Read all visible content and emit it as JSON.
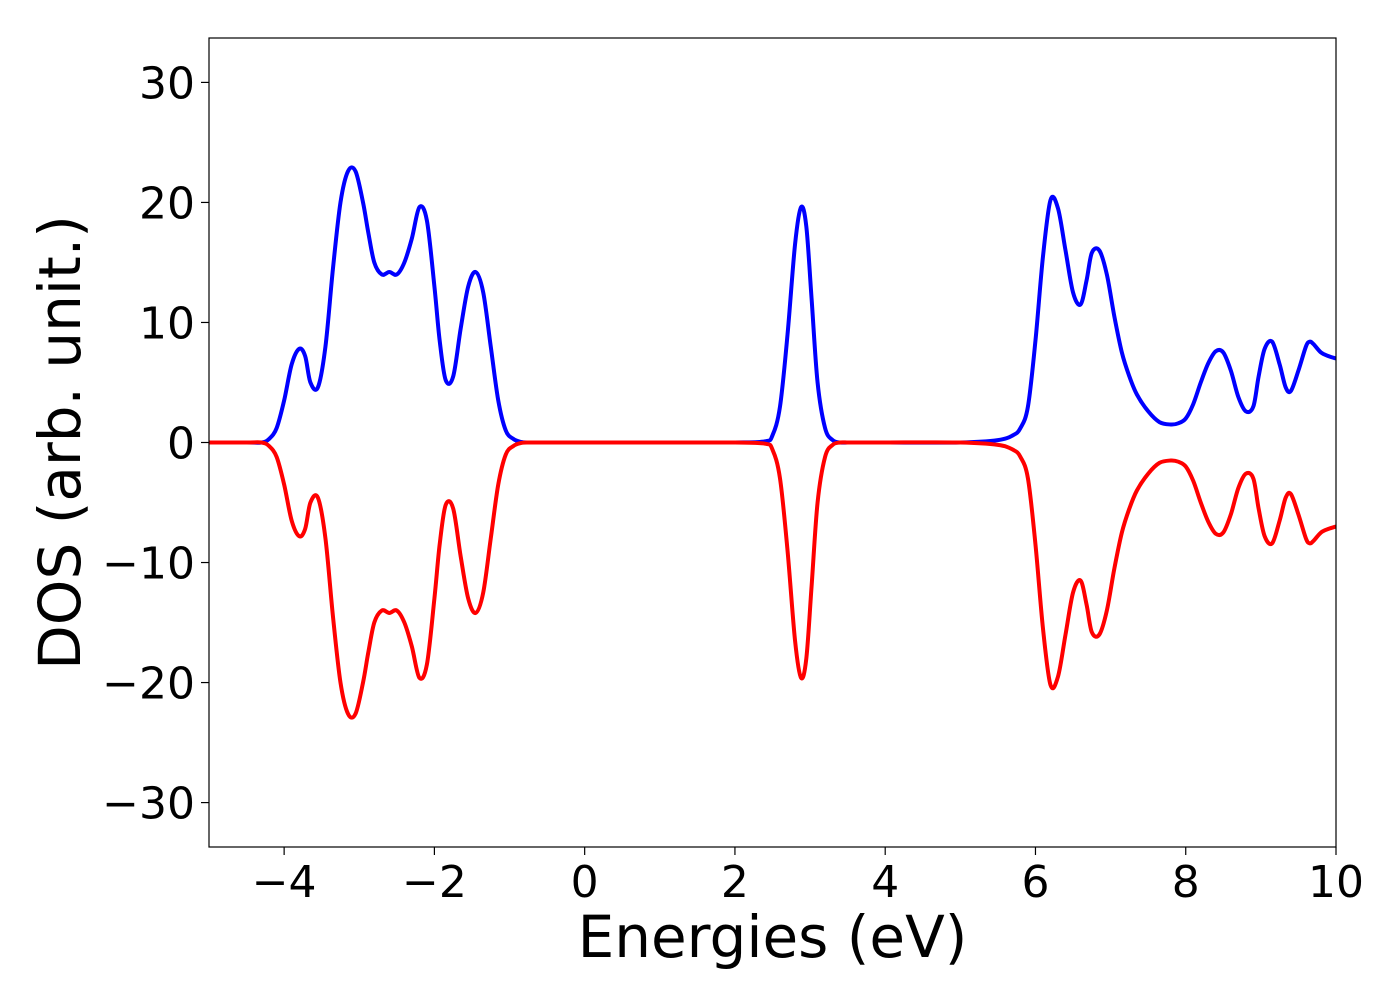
{
  "chart_data": {
    "type": "line",
    "title": "",
    "xlabel": "Energies (eV)",
    "ylabel": "DOS (arb. unit.)",
    "xlim": [
      -5,
      10
    ],
    "ylim": [
      -33.7,
      33.7
    ],
    "xticks": [
      -4,
      -2,
      0,
      2,
      4,
      6,
      8,
      10
    ],
    "xtick_labels": [
      "−4",
      "−2",
      "0",
      "2",
      "4",
      "6",
      "8",
      "10"
    ],
    "yticks": [
      30,
      20,
      10,
      0,
      -10,
      -20,
      -30
    ],
    "ytick_labels": [
      "30",
      "20",
      "10",
      "0",
      "−10",
      "−20",
      "−30"
    ],
    "grid": false,
    "legend": "none",
    "series": [
      {
        "color": "#0000ff",
        "x": [
          -5.0,
          -4.5,
          -4.3,
          -4.2,
          -4.1,
          -4.0,
          -3.9,
          -3.8,
          -3.72,
          -3.65,
          -3.55,
          -3.45,
          -3.35,
          -3.25,
          -3.15,
          -3.05,
          -2.95,
          -2.88,
          -2.8,
          -2.7,
          -2.6,
          -2.5,
          -2.4,
          -2.3,
          -2.2,
          -2.1,
          -2.0,
          -1.93,
          -1.85,
          -1.75,
          -1.65,
          -1.55,
          -1.45,
          -1.35,
          -1.25,
          -1.15,
          -1.05,
          -0.95,
          -0.85,
          -0.75,
          -0.65,
          -0.55,
          -0.4,
          0.0,
          1.0,
          2.0,
          2.4,
          2.5,
          2.6,
          2.7,
          2.8,
          2.88,
          2.95,
          3.02,
          3.1,
          3.2,
          3.3,
          3.4,
          3.5,
          3.6,
          4.0,
          5.0,
          5.5,
          5.7,
          5.8,
          5.9,
          6.0,
          6.1,
          6.2,
          6.3,
          6.4,
          6.5,
          6.6,
          6.68,
          6.75,
          6.85,
          6.95,
          7.05,
          7.15,
          7.25,
          7.35,
          7.5,
          7.65,
          7.8,
          7.9,
          8.0,
          8.1,
          8.2,
          8.3,
          8.4,
          8.5,
          8.6,
          8.7,
          8.8,
          8.9,
          8.97,
          9.05,
          9.15,
          9.25,
          9.33,
          9.4,
          9.5,
          9.6,
          9.65,
          9.7,
          9.8,
          9.9,
          10.0
        ],
        "y": [
          0,
          0,
          0,
          0.3,
          1.2,
          3.5,
          6.5,
          7.8,
          7.2,
          5.0,
          4.6,
          8.0,
          14.5,
          20.0,
          22.6,
          22.6,
          20.0,
          17.5,
          15.0,
          14.0,
          14.2,
          14.0,
          15.0,
          17.0,
          19.6,
          18.5,
          13.0,
          8.5,
          5.2,
          5.5,
          9.5,
          13.0,
          14.2,
          12.5,
          8.0,
          3.5,
          1.0,
          0.3,
          0.05,
          0,
          0,
          0,
          0,
          0,
          0,
          0,
          0.1,
          0.6,
          3.0,
          9.0,
          16.5,
          19.6,
          18.0,
          12.0,
          5.0,
          1.2,
          0.2,
          0,
          0,
          0,
          0,
          0,
          0.2,
          0.6,
          1.2,
          3.0,
          8.5,
          15.5,
          20.2,
          19.5,
          16.0,
          12.5,
          11.5,
          13.5,
          15.8,
          16.0,
          14.0,
          10.5,
          7.5,
          5.5,
          4.0,
          2.6,
          1.7,
          1.5,
          1.6,
          2.0,
          3.2,
          5.0,
          6.6,
          7.6,
          7.5,
          6.0,
          3.8,
          2.6,
          3.0,
          5.5,
          7.8,
          8.4,
          6.5,
          4.6,
          4.3,
          6.0,
          8.0,
          8.4,
          8.2,
          7.5,
          7.2,
          7.0
        ]
      },
      {
        "color": "#ff0000",
        "x": [
          -5.0,
          -4.5,
          -4.3,
          -4.2,
          -4.1,
          -4.0,
          -3.9,
          -3.8,
          -3.72,
          -3.65,
          -3.55,
          -3.45,
          -3.35,
          -3.25,
          -3.15,
          -3.05,
          -2.95,
          -2.88,
          -2.8,
          -2.7,
          -2.6,
          -2.5,
          -2.4,
          -2.3,
          -2.2,
          -2.1,
          -2.0,
          -1.93,
          -1.85,
          -1.75,
          -1.65,
          -1.55,
          -1.45,
          -1.35,
          -1.25,
          -1.15,
          -1.05,
          -0.95,
          -0.85,
          -0.75,
          -0.65,
          -0.55,
          -0.4,
          0.0,
          1.0,
          2.0,
          2.4,
          2.5,
          2.6,
          2.7,
          2.8,
          2.88,
          2.95,
          3.02,
          3.1,
          3.2,
          3.3,
          3.4,
          3.5,
          3.6,
          4.0,
          5.0,
          5.5,
          5.7,
          5.8,
          5.9,
          6.0,
          6.1,
          6.2,
          6.3,
          6.4,
          6.5,
          6.6,
          6.68,
          6.75,
          6.85,
          6.95,
          7.05,
          7.15,
          7.25,
          7.35,
          7.5,
          7.65,
          7.8,
          7.9,
          8.0,
          8.1,
          8.2,
          8.3,
          8.4,
          8.5,
          8.6,
          8.7,
          8.8,
          8.9,
          8.97,
          9.05,
          9.15,
          9.25,
          9.33,
          9.4,
          9.5,
          9.6,
          9.65,
          9.7,
          9.8,
          9.9,
          10.0
        ],
        "y": [
          0,
          0,
          0,
          -0.3,
          -1.2,
          -3.5,
          -6.5,
          -7.8,
          -7.2,
          -5.0,
          -4.6,
          -8.0,
          -14.5,
          -20.0,
          -22.6,
          -22.6,
          -20.0,
          -17.5,
          -15.0,
          -14.0,
          -14.2,
          -14.0,
          -15.0,
          -17.0,
          -19.6,
          -18.5,
          -13.0,
          -8.5,
          -5.2,
          -5.5,
          -9.5,
          -13.0,
          -14.2,
          -12.5,
          -8.0,
          -3.5,
          -1.0,
          -0.3,
          -0.05,
          0,
          0,
          0,
          0,
          0,
          0,
          0,
          -0.1,
          -0.6,
          -3.0,
          -9.0,
          -16.5,
          -19.6,
          -18.0,
          -12.0,
          -5.0,
          -1.2,
          -0.2,
          0,
          0,
          0,
          0,
          0,
          -0.2,
          -0.6,
          -1.2,
          -3.0,
          -8.5,
          -15.5,
          -20.2,
          -19.5,
          -16.0,
          -12.5,
          -11.5,
          -13.5,
          -15.8,
          -16.0,
          -14.0,
          -10.5,
          -7.5,
          -5.5,
          -4.0,
          -2.6,
          -1.7,
          -1.5,
          -1.6,
          -2.0,
          -3.2,
          -5.0,
          -6.6,
          -7.6,
          -7.5,
          -6.0,
          -3.8,
          -2.6,
          -3.0,
          -5.5,
          -7.8,
          -8.4,
          -6.5,
          -4.6,
          -4.3,
          -6.0,
          -8.0,
          -8.4,
          -8.2,
          -7.5,
          -7.2,
          -7.0
        ]
      }
    ]
  }
}
